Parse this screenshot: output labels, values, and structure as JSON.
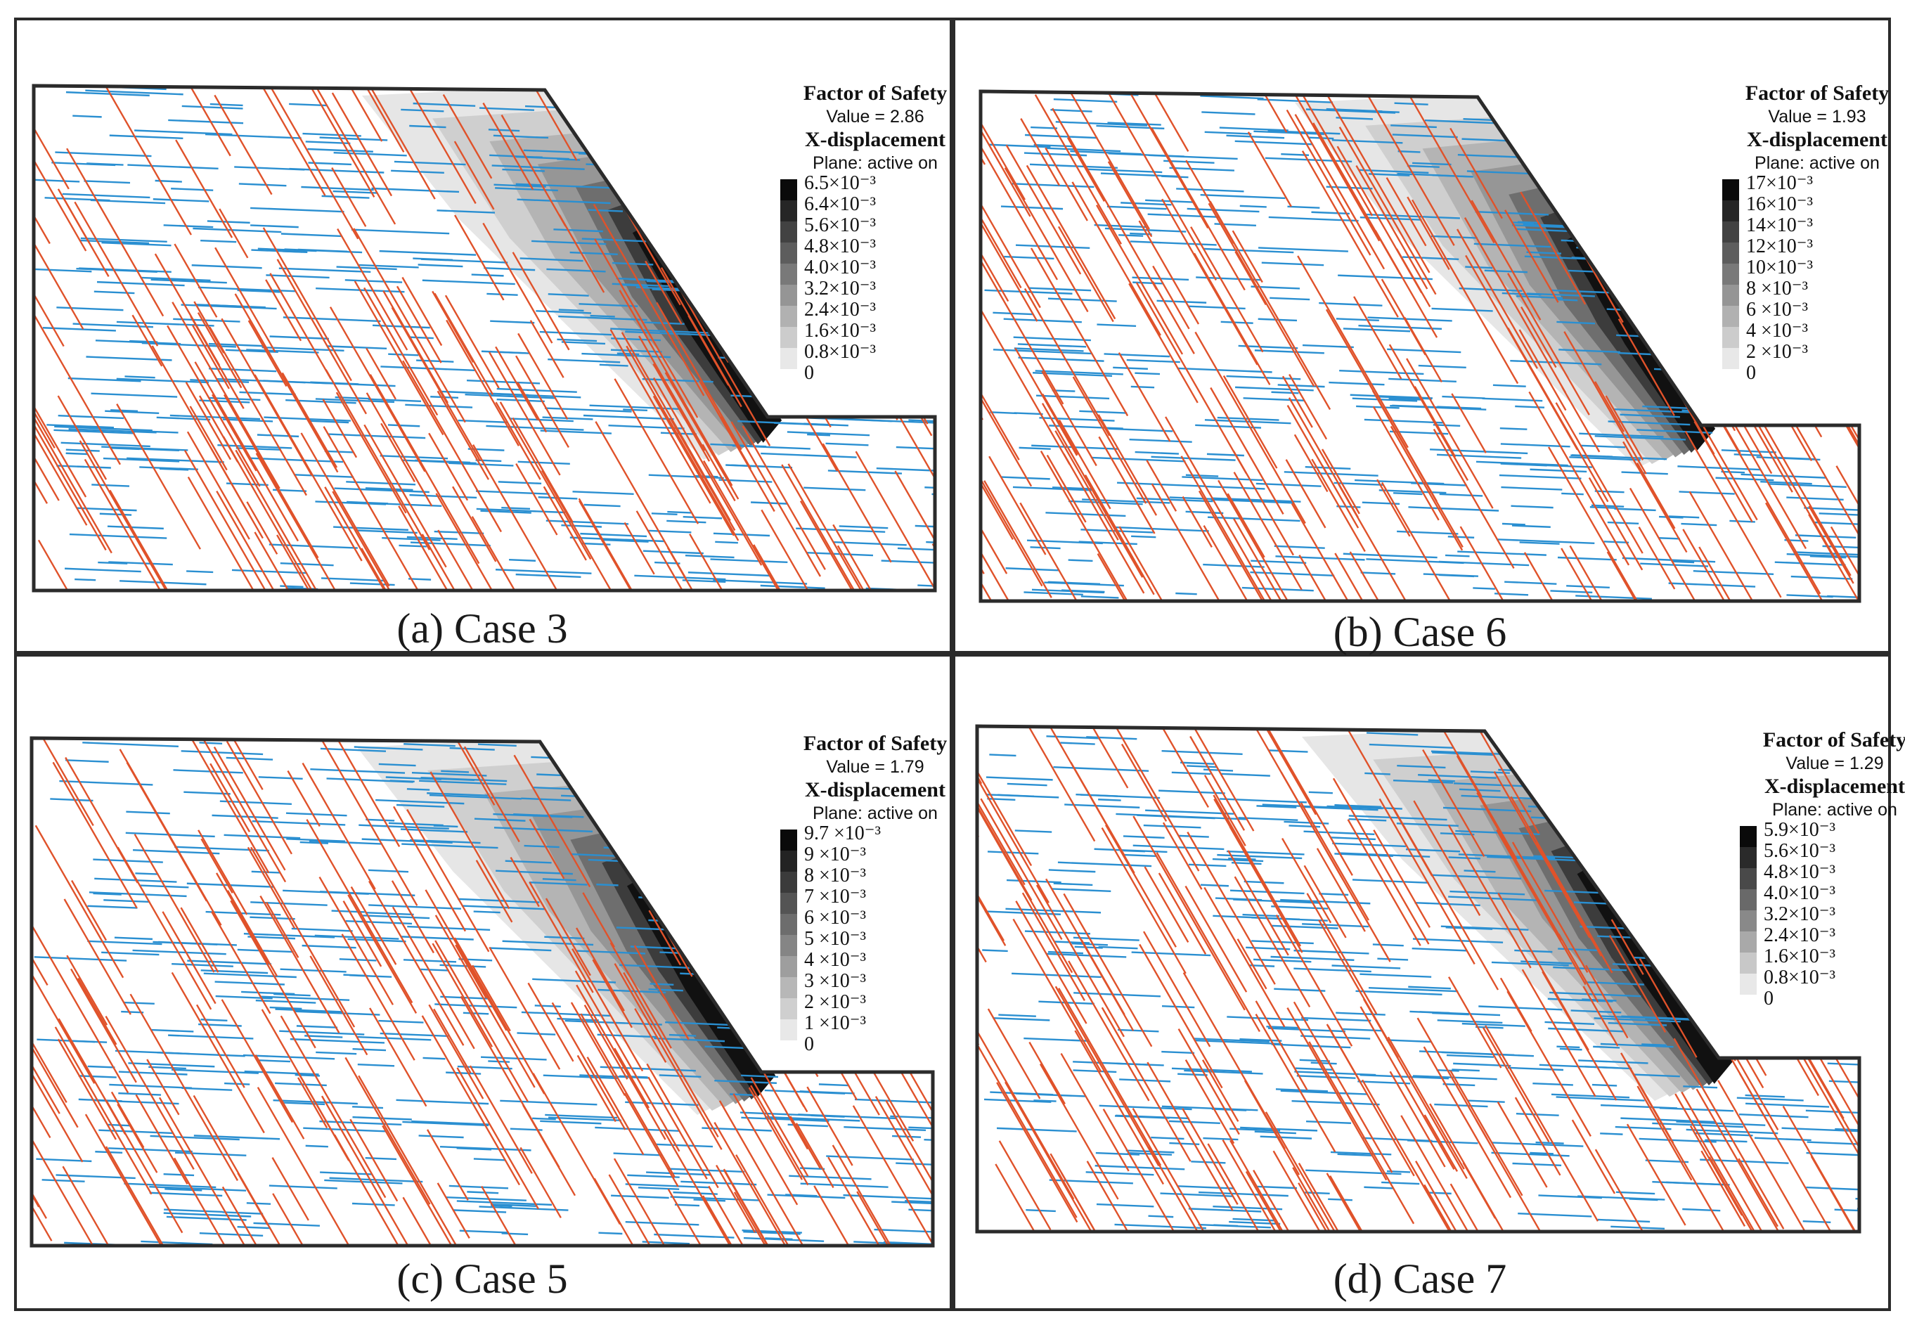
{
  "panels": [
    {
      "caption": "(a) Case 3",
      "fos_title": "Factor of Safety",
      "fos_value": "Value = 2.86",
      "disp_title": "X-displacement",
      "plane": "Plane: active on",
      "scale": [
        "6.5×10⁻³",
        "6.4×10⁻³",
        "5.6×10⁻³",
        "4.8×10⁻³",
        "4.0×10⁻³",
        "3.2×10⁻³",
        "2.4×10⁻³",
        "1.6×10⁻³",
        "0.8×10⁻³",
        "0"
      ]
    },
    {
      "caption": "(b) Case 6",
      "fos_title": "Factor of Safety",
      "fos_value": "Value = 1.93",
      "disp_title": "X-displacement",
      "plane": "Plane: active on",
      "scale": [
        "17×10⁻³",
        "16×10⁻³",
        "14×10⁻³",
        "12×10⁻³",
        "10×10⁻³",
        "8 ×10⁻³",
        "6 ×10⁻³",
        "4 ×10⁻³",
        "2 ×10⁻³",
        "0"
      ]
    },
    {
      "caption": "(c) Case 5",
      "fos_title": "Factor of Safety",
      "fos_value": "Value = 1.79",
      "disp_title": "X-displacement",
      "plane": "Plane: active on",
      "scale": [
        "9.7 ×10⁻³",
        "9 ×10⁻³",
        "8 ×10⁻³",
        "7 ×10⁻³",
        "6 ×10⁻³",
        "5 ×10⁻³",
        "4 ×10⁻³",
        "3 ×10⁻³",
        "2 ×10⁻³",
        "1 ×10⁻³",
        "0"
      ]
    },
    {
      "caption": "(d) Case 7",
      "fos_title": "Factor of Safety",
      "fos_value": "Value = 1.29",
      "disp_title": "X-displacement",
      "plane": "Plane: active on",
      "scale": [
        "5.9×10⁻³",
        "5.6×10⁻³",
        "4.8×10⁻³",
        "4.0×10⁻³",
        "3.2×10⁻³",
        "2.4×10⁻³",
        "1.6×10⁻³",
        "0.8×10⁻³",
        "0"
      ]
    }
  ],
  "colors": {
    "fracture_set_1": "#e0522a",
    "fracture_set_2": "#2a8fd1",
    "outline": "#2b2b2b"
  }
}
